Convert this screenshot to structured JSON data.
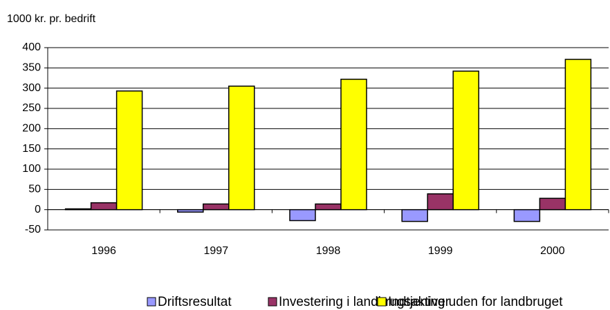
{
  "chart_data": {
    "type": "bar",
    "y_label": "1000 kr. pr. bedrift",
    "categories": [
      "1996",
      "1997",
      "1998",
      "1999",
      "2000"
    ],
    "series": [
      {
        "name": "Driftsresultat",
        "color": "#9999ff",
        "values": [
          2,
          -6,
          -27,
          -29,
          -29
        ]
      },
      {
        "name": "Investering i landbrugsaktiver",
        "color": "#993366",
        "values": [
          17,
          14,
          14,
          39,
          28
        ]
      },
      {
        "name": "Indtjening uden for landbruget",
        "color": "#ffff00",
        "values": [
          293,
          305,
          322,
          342,
          371
        ]
      }
    ],
    "ylim": [
      -50,
      400
    ],
    "yticks": [
      -50,
      0,
      50,
      100,
      150,
      200,
      250,
      300,
      350,
      400
    ],
    "grid": true,
    "legend": "bottom"
  }
}
